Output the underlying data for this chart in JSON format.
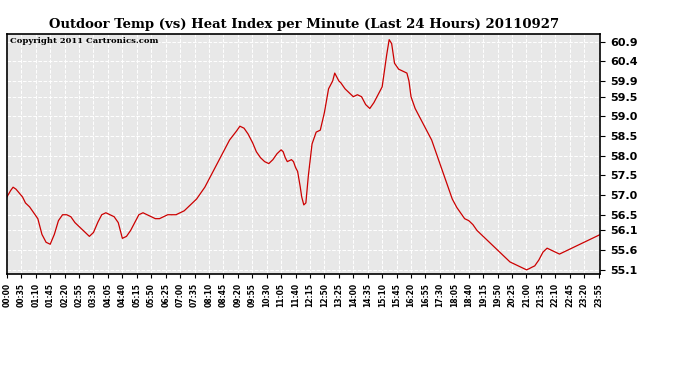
{
  "title": "Outdoor Temp (vs) Heat Index per Minute (Last 24 Hours) 20110927",
  "copyright": "Copyright 2011 Cartronics.com",
  "line_color": "#cc0000",
  "bg_color": "#ffffff",
  "plot_bg_color": "#e8e8e8",
  "grid_color": "#ffffff",
  "ylim": [
    55.0,
    61.1
  ],
  "yticks": [
    55.1,
    55.6,
    56.1,
    56.5,
    57.0,
    57.5,
    58.0,
    58.5,
    59.0,
    59.5,
    59.9,
    60.4,
    60.9
  ],
  "x_labels": [
    "00:00",
    "00:35",
    "01:10",
    "01:45",
    "02:20",
    "02:55",
    "03:30",
    "04:05",
    "04:40",
    "05:15",
    "05:50",
    "06:25",
    "07:00",
    "07:35",
    "08:10",
    "08:45",
    "09:20",
    "09:55",
    "10:30",
    "11:05",
    "11:40",
    "12:15",
    "12:50",
    "13:25",
    "14:00",
    "14:35",
    "15:10",
    "15:45",
    "16:20",
    "16:55",
    "17:30",
    "18:05",
    "18:40",
    "19:15",
    "19:50",
    "20:25",
    "21:00",
    "21:35",
    "22:10",
    "22:45",
    "23:20",
    "23:55"
  ],
  "y_values_key_times": {
    "00:00": 56.95,
    "00:08": 57.1,
    "00:15": 57.2,
    "00:22": 57.15,
    "00:30": 57.05,
    "00:38": 56.95,
    "00:45": 56.8,
    "00:55": 56.7,
    "01:05": 56.55,
    "01:15": 56.4,
    "01:25": 56.0,
    "01:35": 55.8,
    "01:45": 55.75,
    "01:55": 56.0,
    "02:05": 56.35,
    "02:15": 56.5,
    "02:25": 56.5,
    "02:35": 56.45,
    "02:45": 56.3,
    "02:55": 56.2,
    "03:05": 56.1,
    "03:15": 56.0,
    "03:20": 55.95,
    "03:30": 56.05,
    "03:40": 56.3,
    "03:50": 56.5,
    "04:00": 56.55,
    "04:10": 56.5,
    "04:20": 56.45,
    "04:30": 56.3,
    "04:35": 56.1,
    "04:40": 55.9,
    "04:50": 55.95,
    "05:00": 56.1,
    "05:10": 56.3,
    "05:20": 56.5,
    "05:30": 56.55,
    "05:40": 56.5,
    "05:50": 56.45,
    "06:00": 56.4,
    "06:10": 56.4,
    "06:20": 56.45,
    "06:30": 56.5,
    "06:40": 56.5,
    "06:50": 56.5,
    "07:00": 56.55,
    "07:10": 56.6,
    "07:20": 56.7,
    "07:30": 56.8,
    "07:40": 56.9,
    "07:50": 57.05,
    "08:00": 57.2,
    "08:15": 57.5,
    "08:30": 57.8,
    "08:45": 58.1,
    "09:00": 58.4,
    "09:15": 58.6,
    "09:25": 58.75,
    "09:35": 58.7,
    "09:45": 58.55,
    "09:55": 58.35,
    "10:05": 58.1,
    "10:15": 57.95,
    "10:25": 57.85,
    "10:35": 57.8,
    "10:45": 57.9,
    "10:55": 58.05,
    "11:05": 58.15,
    "11:10": 58.1,
    "11:15": 57.95,
    "11:20": 57.85,
    "11:30": 57.9,
    "11:35": 57.85,
    "11:40": 57.7,
    "11:45": 57.6,
    "11:50": 57.3,
    "11:55": 56.95,
    "12:00": 56.75,
    "12:05": 56.8,
    "12:10": 57.4,
    "12:20": 58.3,
    "12:30": 58.6,
    "12:40": 58.65,
    "12:50": 59.1,
    "13:00": 59.7,
    "13:10": 59.9,
    "13:15": 60.1,
    "13:20": 60.0,
    "13:25": 59.9,
    "13:30": 59.85,
    "13:40": 59.7,
    "13:50": 59.6,
    "14:00": 59.5,
    "14:10": 59.55,
    "14:20": 59.5,
    "14:30": 59.3,
    "14:40": 59.2,
    "14:50": 59.35,
    "15:00": 59.55,
    "15:10": 59.75,
    "15:20": 60.5,
    "15:27": 60.95,
    "15:33": 60.85,
    "15:40": 60.35,
    "15:50": 60.2,
    "16:00": 60.15,
    "16:10": 60.1,
    "16:15": 59.9,
    "16:20": 59.5,
    "16:30": 59.2,
    "16:40": 59.0,
    "16:50": 58.8,
    "17:00": 58.6,
    "17:10": 58.4,
    "17:20": 58.1,
    "17:30": 57.8,
    "17:40": 57.5,
    "17:50": 57.2,
    "18:00": 56.9,
    "18:10": 56.7,
    "18:20": 56.55,
    "18:30": 56.4,
    "18:40": 56.35,
    "18:50": 56.25,
    "19:00": 56.1,
    "19:10": 56.0,
    "19:20": 55.9,
    "19:30": 55.8,
    "19:40": 55.7,
    "19:50": 55.6,
    "20:00": 55.5,
    "20:10": 55.4,
    "20:20": 55.3,
    "20:30": 55.25,
    "20:40": 55.2,
    "20:50": 55.15,
    "21:00": 55.1,
    "21:05": 55.12,
    "21:10": 55.15,
    "21:20": 55.2,
    "21:30": 55.35,
    "21:40": 55.55,
    "21:50": 55.65,
    "22:00": 55.6,
    "22:10": 55.55,
    "22:20": 55.5,
    "22:30": 55.55,
    "22:40": 55.6,
    "22:50": 55.65,
    "23:00": 55.7,
    "23:10": 55.75,
    "23:20": 55.8,
    "23:30": 55.85,
    "23:40": 55.9,
    "23:50": 55.95,
    "23:59": 56.0
  }
}
